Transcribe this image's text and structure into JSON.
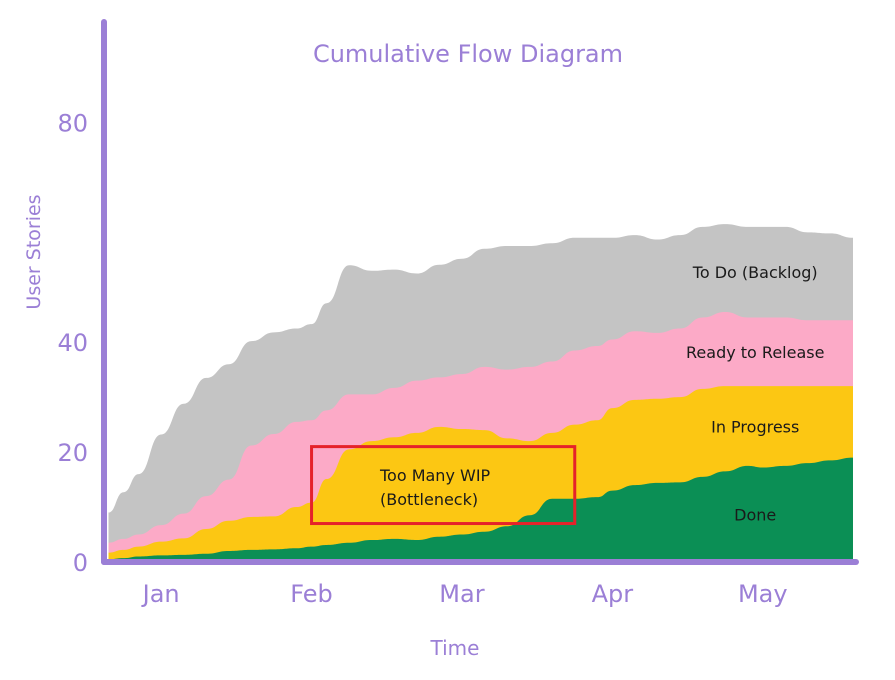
{
  "chart_data": {
    "type": "area",
    "stacked": true,
    "title": "Cumulative Flow Diagram",
    "xlabel": "Time",
    "ylabel": "User Stories",
    "x_tick_labels": [
      "Jan",
      "Feb",
      "Mar",
      "Apr",
      "May"
    ],
    "x_tick_positions": [
      1.0,
      2.0,
      3.0,
      4.0,
      5.0
    ],
    "y_ticks": [
      0,
      20,
      40,
      80
    ],
    "xlim": [
      0.62,
      5.62
    ],
    "ylim": [
      0,
      95
    ],
    "x": [
      0.65,
      0.75,
      0.85,
      1.0,
      1.15,
      1.3,
      1.45,
      1.6,
      1.75,
      1.9,
      2.0,
      2.1,
      2.25,
      2.4,
      2.55,
      2.7,
      2.85,
      3.0,
      3.15,
      3.3,
      3.45,
      3.6,
      3.75,
      3.9,
      4.0,
      4.15,
      4.3,
      4.45,
      4.6,
      4.75,
      4.9,
      5.0,
      5.15,
      5.3,
      5.45,
      5.6
    ],
    "series": [
      {
        "name": "Done",
        "color": "#0b8f55",
        "values": [
          0.5,
          0.7,
          1.0,
          1.2,
          1.3,
          1.5,
          2.0,
          2.2,
          2.3,
          2.5,
          2.8,
          3.1,
          3.5,
          4.0,
          4.2,
          4.0,
          4.6,
          5.0,
          5.5,
          6.5,
          8.5,
          11.5,
          11.5,
          11.8,
          13.0,
          14.0,
          14.4,
          14.5,
          15.5,
          16.5,
          17.5,
          17.2,
          17.5,
          18.0,
          18.5,
          19.0
        ]
      },
      {
        "name": "In Progress",
        "color": "#fcc713",
        "values": [
          1.2,
          1.5,
          1.8,
          2.5,
          3.0,
          4.5,
          5.5,
          6.0,
          6.0,
          7.5,
          8.0,
          12.0,
          17.0,
          18.0,
          18.5,
          19.5,
          20.0,
          19.2,
          18.5,
          16.0,
          13.5,
          12.0,
          13.5,
          14.0,
          15.0,
          15.5,
          15.3,
          15.5,
          16.0,
          15.5,
          14.5,
          14.8,
          14.5,
          14.0,
          13.5,
          13.0
        ]
      },
      {
        "name": "Ready to Release",
        "color": "#fcaac7",
        "values": [
          1.8,
          2.0,
          2.2,
          3.0,
          4.5,
          6.0,
          7.5,
          13.0,
          15.0,
          15.5,
          15.0,
          12.5,
          10.0,
          8.5,
          9.0,
          9.5,
          9.0,
          10.0,
          11.5,
          12.5,
          13.5,
          13.0,
          13.5,
          13.5,
          12.5,
          12.5,
          12.0,
          12.5,
          13.0,
          13.5,
          12.5,
          12.5,
          12.5,
          12.0,
          12.0,
          12.0
        ]
      },
      {
        "name": "To Do (Backlog)",
        "color": "#c4c4c4",
        "values": [
          5.5,
          8.5,
          11.0,
          16.5,
          20.0,
          21.5,
          21.0,
          19.0,
          18.5,
          17.0,
          17.5,
          19.5,
          23.5,
          22.5,
          21.5,
          19.5,
          20.5,
          21.0,
          21.5,
          22.5,
          22.0,
          21.5,
          20.5,
          19.7,
          18.5,
          17.5,
          17.0,
          17.0,
          16.5,
          16.0,
          16.5,
          16.5,
          16.5,
          16.0,
          15.8,
          15.0
        ]
      }
    ],
    "band_labels": [
      "To Do (Backlog)",
      "Ready to Release",
      "In Progress",
      "Done"
    ],
    "annotation": {
      "line1": "Too Many WIP",
      "line2": "(Bottleneck)",
      "x_range": [
        2.0,
        3.75
      ],
      "y_range": [
        7,
        21
      ],
      "color": "#e5222a"
    },
    "axis_color": "#9b7fd6",
    "grid": false,
    "legend": "none"
  }
}
